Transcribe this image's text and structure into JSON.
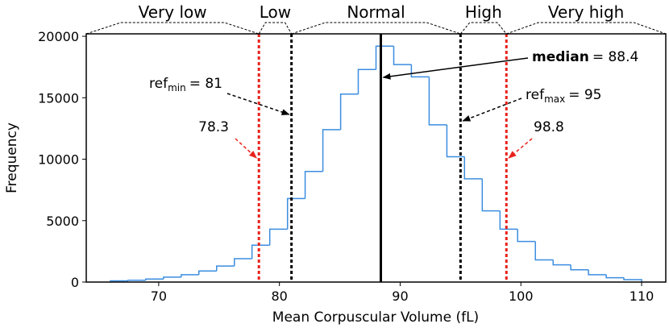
{
  "chart_data": {
    "type": "histogram",
    "x_label": "Mean Corpuscular Volume (fL)",
    "y_label": "Frequency",
    "color": "#3b8de0",
    "bins": [
      66,
      67.47,
      68.93,
      70.4,
      71.87,
      73.33,
      74.8,
      76.27,
      77.73,
      79.2,
      80.67,
      82.13,
      83.6,
      85.07,
      86.53,
      88,
      89.47,
      90.93,
      92.4,
      93.87,
      95.33,
      96.8,
      98.27,
      99.73,
      101.2,
      102.67,
      104.13,
      105.6,
      107.07,
      108.53,
      110
    ],
    "counts": [
      100,
      150,
      250,
      400,
      600,
      900,
      1300,
      1900,
      3000,
      4300,
      6800,
      9000,
      12400,
      15300,
      17300,
      19200,
      17700,
      16700,
      12800,
      10200,
      8400,
      5800,
      4300,
      3300,
      1800,
      1400,
      1000,
      600,
      350,
      200
    ],
    "xlim": [
      64,
      112
    ],
    "ylim": [
      0,
      20200
    ],
    "xticks": [
      70,
      80,
      90,
      100,
      110
    ],
    "yticks": [
      0,
      5000,
      10000,
      15000,
      20000
    ],
    "lines": [
      {
        "value": 78.3,
        "color": "#e8221b",
        "style": "dashed",
        "label": {
          "text": "78.3"
        }
      },
      {
        "value": 81,
        "color": "#000000",
        "style": "dashed",
        "label": {
          "name": "ref",
          "sub": "min",
          "text": "= 81"
        }
      },
      {
        "value": 88.4,
        "color": "#000000",
        "style": "solid",
        "label": {
          "name": "median",
          "text": "= 88.4"
        }
      },
      {
        "value": 95,
        "color": "#000000",
        "style": "dashed",
        "label": {
          "name": "ref",
          "sub": "max",
          "text": "= 95"
        }
      },
      {
        "value": 98.8,
        "color": "#e8221b",
        "style": "dashed",
        "label": {
          "text": "98.8"
        }
      }
    ],
    "regions": [
      "Very low",
      "Low",
      "Normal",
      "High",
      "Very high"
    ]
  }
}
